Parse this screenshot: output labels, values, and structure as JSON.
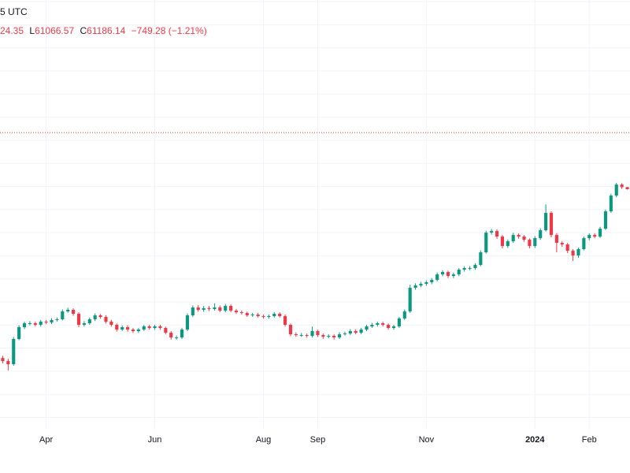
{
  "header": {
    "time_tail": "5 UTC",
    "high_tail": "24.35",
    "low_label": "L",
    "low": "61066.57",
    "close_label": "C",
    "close": "61186.14",
    "change": "−749.28 (−1.21%)"
  },
  "chart_data": {
    "type": "candlestick",
    "categories": [
      null,
      null,
      null,
      null,
      null,
      null,
      null,
      null,
      "Apr",
      null,
      null,
      null,
      null,
      null,
      null,
      null,
      null,
      null,
      null,
      null,
      null,
      null,
      null,
      null,
      null,
      null,
      null,
      null,
      "Jun",
      null,
      null,
      null,
      null,
      null,
      null,
      null,
      null,
      null,
      null,
      null,
      null,
      null,
      null,
      null,
      null,
      null,
      null,
      null,
      "Aug",
      null,
      null,
      null,
      null,
      null,
      null,
      null,
      null,
      null,
      "Sep",
      null,
      null,
      null,
      null,
      null,
      null,
      null,
      null,
      null,
      null,
      null,
      null,
      null,
      null,
      null,
      null,
      null,
      null,
      null,
      "Nov",
      null,
      null,
      null,
      null,
      null,
      null,
      null,
      null,
      null,
      null,
      null,
      null,
      null,
      null,
      null,
      null,
      null,
      null,
      null,
      "2024",
      null,
      null,
      null,
      null,
      null,
      null,
      null,
      null,
      null,
      "Feb",
      null,
      null,
      null,
      null,
      null,
      null,
      null
    ],
    "open": [
      22800,
      22398,
      21990,
      25483,
      27308,
      27944,
      27944,
      27687,
      28202,
      28073,
      28466,
      28596,
      29943,
      30222,
      29532,
      27687,
      27944,
      28596,
      29262,
      28994,
      28202,
      27687,
      26933,
      27308,
      26933,
      26685,
      26933,
      27434,
      27182,
      27434,
      27182,
      26441,
      25719,
      25719,
      26933,
      29262,
      30644,
      30222,
      30503,
      30362,
      30644,
      30084,
      30927,
      30084,
      29805,
      29669,
      29262,
      29397,
      29127,
      28994,
      29127,
      29532,
      29127,
      27687,
      26198,
      26078,
      26078,
      25958,
      26685,
      26078,
      25839,
      25958,
      25719,
      26198,
      26319,
      26685,
      26441,
      26933,
      27434,
      27687,
      27944,
      27687,
      27182,
      27434,
      28728,
      29943,
      34383,
      34860,
      35183,
      35511,
      36005,
      37184,
      37703,
      36843,
      37184,
      38228,
      38582,
      38582,
      39299,
      42306,
      47472,
      47912,
      46389,
      43893,
      45126,
      46818,
      46389,
      45543,
      43893,
      45965,
      48132,
      53267,
      46818,
      44714,
      44300,
      42698,
      41532,
      43094,
      45965,
      46818,
      46389,
      48578,
      53760,
      58953,
      62882,
      61935.42
    ],
    "high": [
      23100,
      22700,
      25800,
      27600,
      28200,
      28300,
      28200,
      28500,
      28500,
      28800,
      28900,
      30300,
      30600,
      30500,
      29800,
      28300,
      28900,
      29600,
      29500,
      29300,
      28500,
      27900,
      27600,
      27600,
      27200,
      27200,
      27700,
      27700,
      27700,
      27700,
      27400,
      26700,
      26000,
      27200,
      29600,
      31000,
      31100,
      30900,
      30900,
      31400,
      31000,
      31300,
      31200,
      30400,
      30100,
      29900,
      29700,
      29700,
      29400,
      29400,
      29800,
      29800,
      29400,
      27900,
      26500,
      26400,
      26300,
      27400,
      26900,
      26300,
      26200,
      26200,
      26500,
      26600,
      27000,
      27000,
      27200,
      27700,
      28000,
      28200,
      28200,
      27900,
      27700,
      29000,
      30300,
      35000,
      35300,
      35600,
      35900,
      36400,
      37600,
      38100,
      38000,
      37600,
      38600,
      39000,
      39000,
      39700,
      42800,
      48000,
      48500,
      48400,
      46800,
      45600,
      47400,
      47300,
      46800,
      45900,
      46500,
      48700,
      56000,
      53800,
      47300,
      45200,
      44700,
      43100,
      43500,
      46400,
      47300,
      47300,
      49100,
      54300,
      59600,
      63500,
      63400,
      62024.35
    ],
    "low": [
      22100,
      21200,
      21800,
      25300,
      27000,
      27600,
      27400,
      27400,
      27800,
      27800,
      28200,
      28400,
      29700,
      29200,
      27300,
      27400,
      27700,
      28300,
      28700,
      27900,
      27400,
      26600,
      26700,
      26600,
      26400,
      26400,
      26700,
      26900,
      26900,
      26900,
      26200,
      25400,
      25400,
      25500,
      26700,
      29000,
      29900,
      29900,
      30000,
      30100,
      29800,
      29800,
      29800,
      29500,
      29400,
      29000,
      29000,
      28900,
      28700,
      28700,
      28900,
      28900,
      27400,
      25900,
      25800,
      25800,
      25700,
      25700,
      25800,
      25500,
      25600,
      25400,
      25500,
      26000,
      26100,
      26200,
      26200,
      26700,
      27200,
      27400,
      27400,
      26900,
      26900,
      27200,
      28500,
      29700,
      34000,
      34500,
      34800,
      35100,
      35700,
      36800,
      36400,
      36400,
      36800,
      37800,
      38100,
      38200,
      39000,
      42000,
      46900,
      45800,
      43300,
      43400,
      44700,
      45800,
      45000,
      43300,
      43400,
      45500,
      47800,
      46200,
      42300,
      43700,
      42100,
      40200,
      41000,
      42800,
      45400,
      45900,
      46000,
      48200,
      53300,
      58400,
      61300,
      61066.57
    ],
    "close": [
      22398,
      21990,
      25483,
      27308,
      27944,
      27944,
      27687,
      28202,
      28073,
      28466,
      28596,
      29943,
      30222,
      29532,
      27687,
      27944,
      28596,
      29262,
      28994,
      28202,
      27687,
      26933,
      27308,
      26933,
      26685,
      26933,
      27434,
      27182,
      27434,
      27182,
      26441,
      25719,
      25719,
      26933,
      29262,
      30644,
      30222,
      30503,
      30362,
      30644,
      30084,
      30927,
      30084,
      29805,
      29669,
      29262,
      29397,
      29127,
      28994,
      29127,
      29532,
      29127,
      27687,
      26198,
      26078,
      26078,
      25958,
      26685,
      26078,
      25839,
      25958,
      25719,
      26198,
      26319,
      26685,
      26441,
      26933,
      27434,
      27687,
      27944,
      27687,
      27182,
      27434,
      28728,
      29943,
      34383,
      34860,
      35183,
      35511,
      36005,
      37184,
      37703,
      36843,
      37184,
      38228,
      38582,
      38582,
      39299,
      42306,
      47472,
      47912,
      46389,
      43893,
      45126,
      46818,
      46389,
      45543,
      43893,
      45965,
      48132,
      53267,
      46818,
      44714,
      44300,
      42698,
      41532,
      43094,
      45965,
      46818,
      46389,
      48578,
      53760,
      58953,
      62882,
      61935.42,
      61186.14
    ],
    "up_color": "#089981",
    "down_color": "#f23645",
    "ylim": [
      15000,
      185000
    ],
    "log_scale": true,
    "grid": true,
    "price_line": 85200,
    "price_line_color": "#f23645"
  }
}
